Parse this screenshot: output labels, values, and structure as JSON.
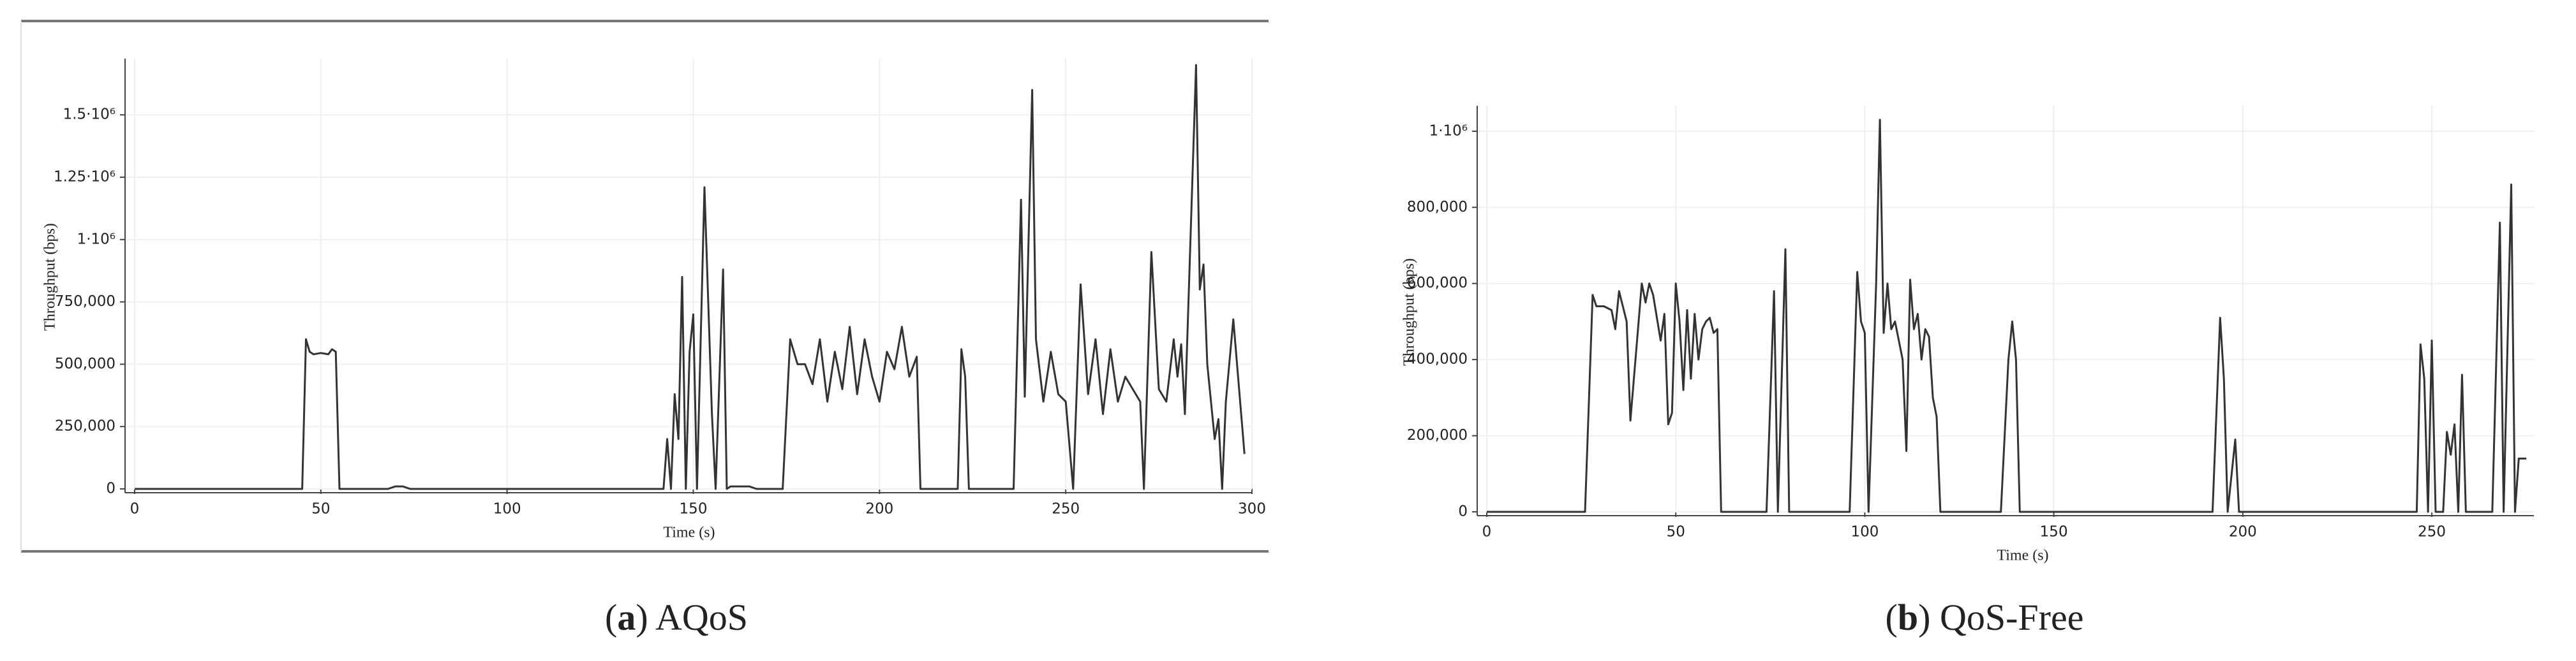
{
  "chart_data": [
    {
      "type": "line",
      "x_label": "Time (s)",
      "y_label": "Throughput (bps)",
      "caption_parts": [
        "(",
        "a",
        ") AQoS"
      ],
      "color": "#333333",
      "grid": true,
      "xlim": [
        0,
        300
      ],
      "xticks": [
        0,
        50,
        100,
        150,
        200,
        250,
        300
      ],
      "ylim": [
        0,
        1700000
      ],
      "yticks": [
        0,
        {
          "value": 250000,
          "label": "250,000"
        },
        {
          "value": 500000,
          "label": "500,000"
        },
        {
          "value": 750000,
          "label": "750,000"
        },
        {
          "value": 1000000,
          "label": "1·10⁶"
        },
        {
          "value": 1250000,
          "label": "1.25·10⁶"
        },
        {
          "value": 1500000,
          "label": "1.5·10⁶"
        }
      ],
      "x": [
        0,
        45,
        46,
        47,
        48,
        50,
        52,
        53,
        54,
        55,
        68,
        70,
        72,
        74,
        142,
        143,
        144,
        145,
        146,
        147,
        148,
        149,
        150,
        151,
        153,
        155,
        156,
        158,
        159,
        160,
        165,
        167,
        174,
        176,
        178,
        180,
        182,
        184,
        186,
        188,
        190,
        192,
        194,
        196,
        198,
        200,
        202,
        204,
        206,
        208,
        210,
        211,
        221,
        222,
        223,
        224,
        236,
        238,
        239,
        241,
        242,
        244,
        246,
        248,
        250,
        252,
        254,
        256,
        258,
        260,
        262,
        264,
        266,
        268,
        270,
        271,
        273,
        275,
        277,
        279,
        280,
        281,
        282,
        285,
        286,
        287,
        288,
        289,
        290,
        291,
        292,
        293,
        295,
        298
      ],
      "values": [
        0,
        0,
        600000,
        550000,
        540000,
        545000,
        540000,
        560000,
        550000,
        0,
        0,
        10000,
        10000,
        0,
        0,
        200000,
        0,
        380000,
        200000,
        850000,
        0,
        550000,
        700000,
        0,
        1210000,
        300000,
        0,
        880000,
        0,
        10000,
        10000,
        0,
        0,
        600000,
        500000,
        500000,
        420000,
        600000,
        350000,
        550000,
        400000,
        650000,
        380000,
        600000,
        450000,
        350000,
        550000,
        480000,
        650000,
        450000,
        530000,
        0,
        0,
        560000,
        450000,
        0,
        0,
        1160000,
        370000,
        1600000,
        600000,
        350000,
        550000,
        380000,
        350000,
        0,
        820000,
        380000,
        600000,
        300000,
        560000,
        350000,
        450000,
        400000,
        350000,
        0,
        950000,
        400000,
        350000,
        600000,
        450000,
        580000,
        300000,
        1700000,
        800000,
        900000,
        500000,
        350000,
        200000,
        280000,
        0,
        350000,
        680000,
        140000
      ]
    },
    {
      "type": "line",
      "x_label": "Time (s)",
      "y_label": "Throughput (bps)",
      "caption_parts": [
        "(",
        "b",
        ") QoS-Free"
      ],
      "color": "#333333",
      "grid": true,
      "xlim": [
        0,
        277
      ],
      "xticks": [
        0,
        50,
        100,
        150,
        200,
        250
      ],
      "ylim": [
        0,
        1050000
      ],
      "yticks": [
        0,
        {
          "value": 200000,
          "label": "200,000"
        },
        {
          "value": 400000,
          "label": "400,000"
        },
        {
          "value": 600000,
          "label": "600,000"
        },
        {
          "value": 800000,
          "label": "800,000"
        },
        {
          "value": 1000000,
          "label": "1·10⁶"
        }
      ],
      "x": [
        0,
        26,
        28,
        29,
        31,
        33,
        34,
        35,
        37,
        38,
        40,
        41,
        42,
        43,
        44,
        46,
        47,
        48,
        49,
        50,
        51,
        52,
        53,
        54,
        55,
        56,
        57,
        58,
        59,
        60,
        61,
        62,
        74,
        76,
        77,
        79,
        80,
        96,
        98,
        99,
        100,
        101,
        103,
        104,
        105,
        106,
        107,
        108,
        110,
        111,
        112,
        113,
        114,
        115,
        116,
        117,
        118,
        119,
        120,
        136,
        138,
        139,
        140,
        141,
        192,
        194,
        195,
        196,
        198,
        199,
        246,
        247,
        248,
        249,
        250,
        251,
        253,
        254,
        255,
        256,
        257,
        258,
        259,
        266,
        268,
        269,
        271,
        272,
        273,
        275
      ],
      "values": [
        0,
        0,
        570000,
        540000,
        540000,
        530000,
        480000,
        580000,
        500000,
        240000,
        480000,
        600000,
        550000,
        600000,
        570000,
        450000,
        520000,
        230000,
        260000,
        600000,
        500000,
        320000,
        530000,
        350000,
        520000,
        400000,
        480000,
        500000,
        510000,
        470000,
        480000,
        0,
        0,
        580000,
        0,
        690000,
        0,
        0,
        630000,
        500000,
        470000,
        0,
        600000,
        1030000,
        470000,
        600000,
        480000,
        500000,
        400000,
        160000,
        610000,
        480000,
        520000,
        400000,
        480000,
        460000,
        300000,
        250000,
        0,
        0,
        400000,
        500000,
        400000,
        0,
        0,
        510000,
        350000,
        0,
        190000,
        0,
        0,
        440000,
        350000,
        0,
        450000,
        0,
        0,
        210000,
        150000,
        230000,
        0,
        360000,
        0,
        0,
        760000,
        0,
        860000,
        0,
        140000,
        140000
      ]
    }
  ]
}
